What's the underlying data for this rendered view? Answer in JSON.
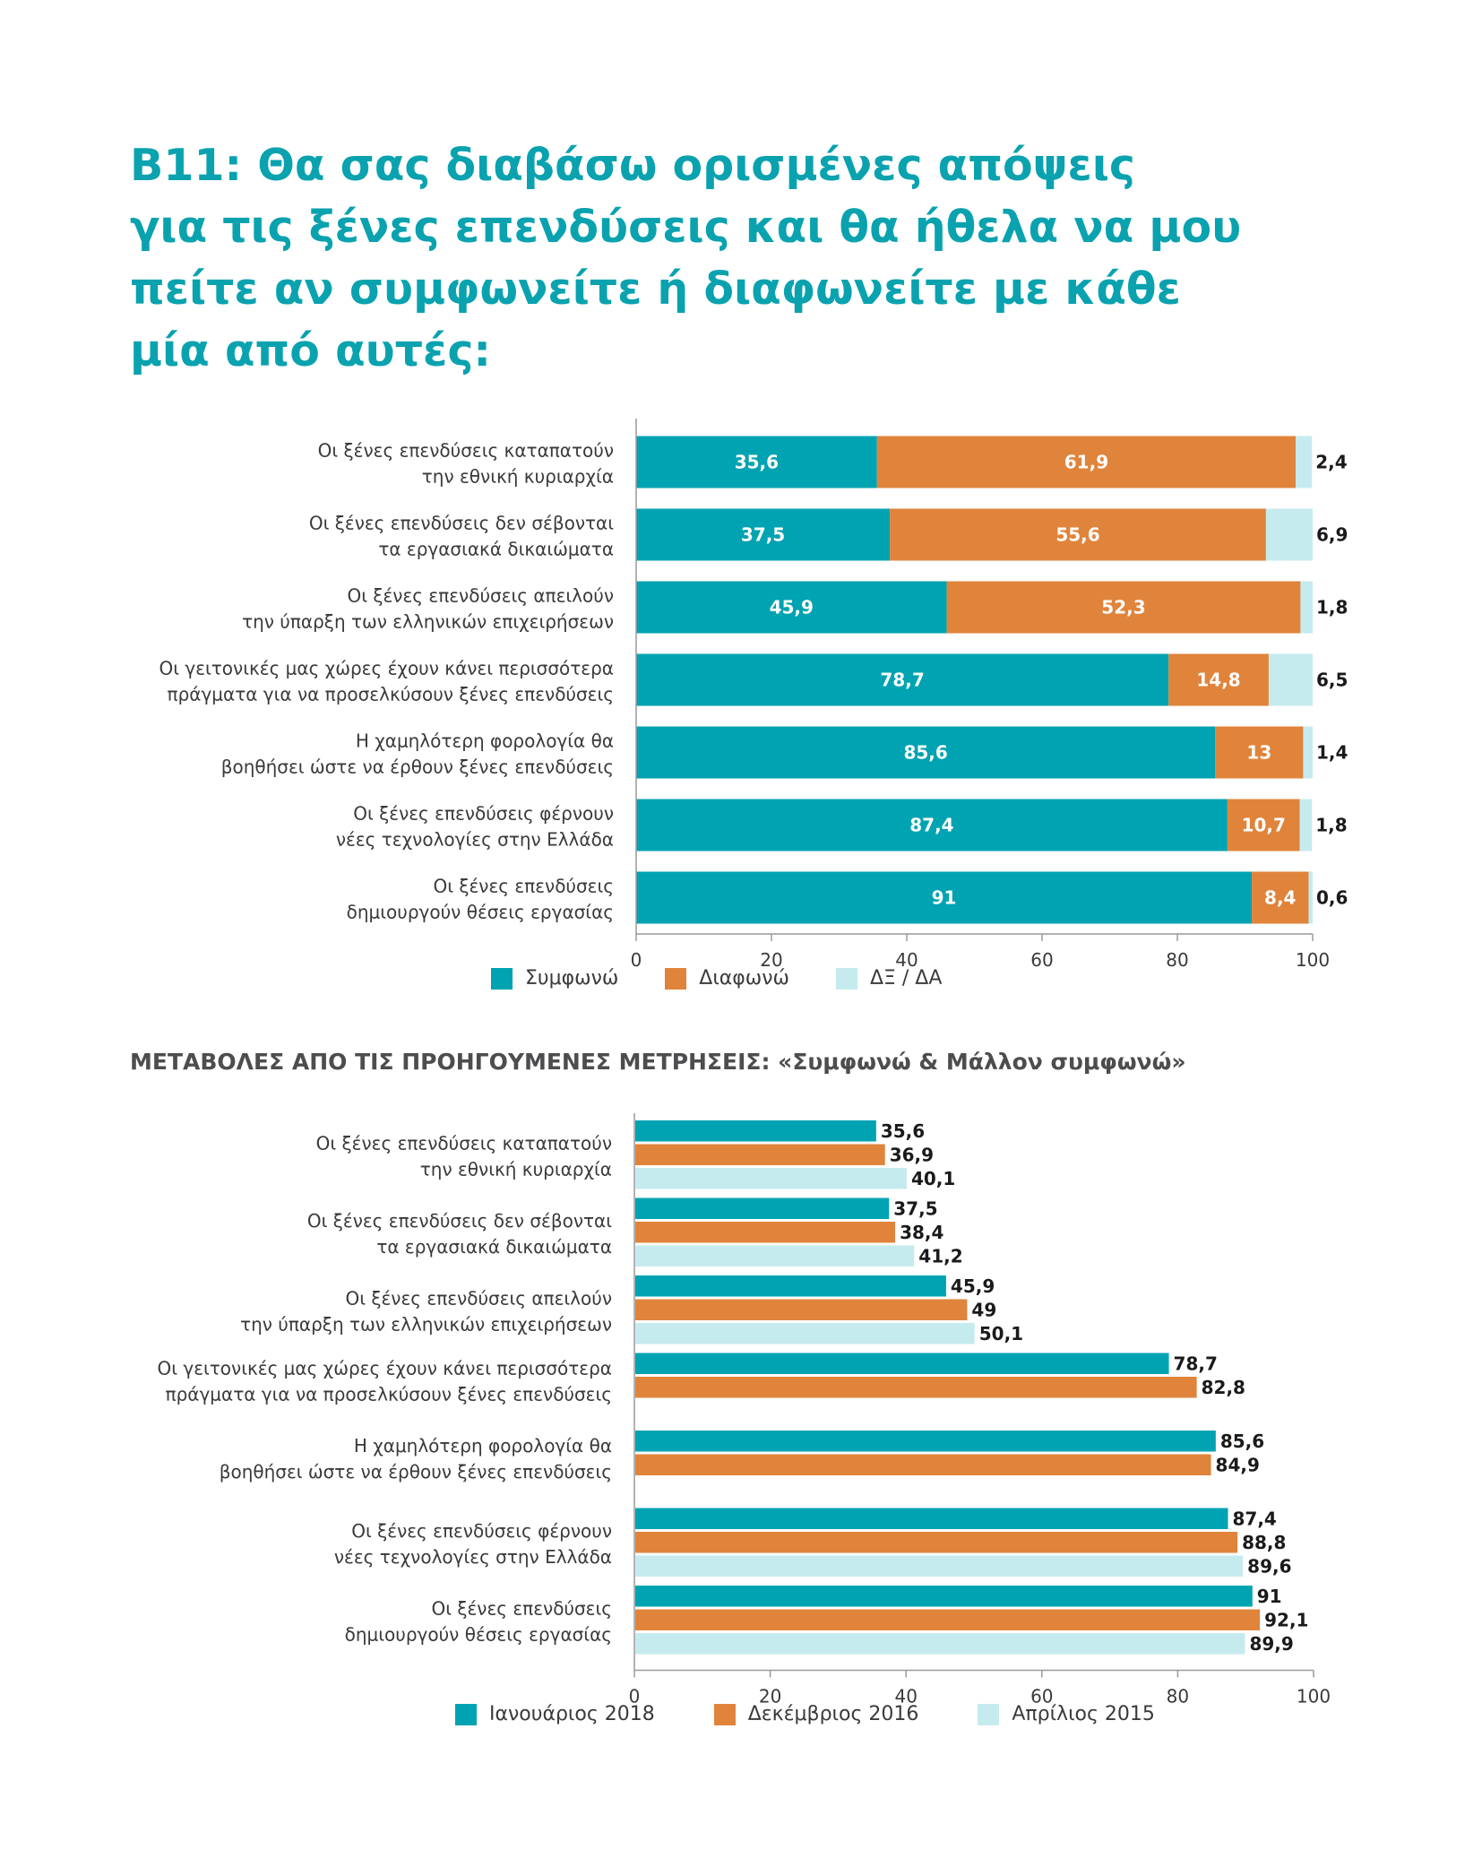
{
  "title_lines": [
    "B11: Θα σας διαβάσω ορισμένες απόψεις",
    "για τις ξένες επενδύσεις και θα ήθελα να μου",
    "πείτε αν συμφωνείτε ή διαφωνείτε με κάθε",
    "μία από αυτές:"
  ],
  "subtitle": "ΜΕΤΑΒΟΛΕΣ ΑΠΟ ΤΙΣ ΠΡΟΗΓΟΥΜΕΝΕΣ ΜΕΤΡΗΣΕΙΣ: «Συμφωνώ & Μάλλον συμφωνώ»",
  "colors": {
    "teal": "#00a3b2",
    "orange": "#e0843b",
    "light": "#c6ebee",
    "axis": "#9a9a9a"
  },
  "chart_data": [
    {
      "type": "bar",
      "orientation": "horizontal",
      "stacked": true,
      "categories": [
        [
          "Οι ξένες επενδύσεις καταπατούν",
          "την εθνική κυριαρχία"
        ],
        [
          "Οι ξένες επενδύσεις δεν σέβονται",
          "τα εργασιακά δικαιώματα"
        ],
        [
          "Οι ξένες επενδύσεις απειλούν",
          "την ύπαρξη των ελληνικών επιχειρήσεων"
        ],
        [
          "Οι γειτονικές μας χώρες έχουν κάνει περισσότερα",
          "πράγματα για να προσελκύσουν ξένες επενδύσεις"
        ],
        [
          "Η χαμηλότερη φορολογία θα",
          "βοηθήσει ώστε να έρθουν ξένες επενδύσεις"
        ],
        [
          "Οι ξένες επενδύσεις φέρνουν",
          "νέες τεχνολογίες στην Ελλάδα"
        ],
        [
          "Οι ξένες επενδύσεις",
          "δημιουργούν θέσεις εργασίας"
        ]
      ],
      "series": [
        {
          "name": "Συμφωνώ",
          "color": "#00a3b2",
          "values": [
            35.6,
            37.5,
            45.9,
            78.7,
            85.6,
            87.4,
            91
          ]
        },
        {
          "name": "Διαφωνώ",
          "color": "#e0843b",
          "values": [
            61.9,
            55.6,
            52.3,
            14.8,
            13,
            10.7,
            8.4
          ]
        },
        {
          "name": "ΔΞ / ΔΑ",
          "color": "#c6ebee",
          "values": [
            2.4,
            6.9,
            1.8,
            6.5,
            1.4,
            1.8,
            0.6
          ]
        }
      ],
      "value_labels": [
        [
          "35,6",
          "37,5",
          "45,9",
          "78,7",
          "85,6",
          "87,4",
          "91"
        ],
        [
          "61,9",
          "55,6",
          "52,3",
          "14,8",
          "13",
          "10,7",
          "8,4"
        ],
        [
          "2,4",
          "6,9",
          "1,8",
          "6,5",
          "1,4",
          "1,8",
          "0,6"
        ]
      ],
      "xlim": [
        0,
        100
      ],
      "xticks": [
        0,
        20,
        40,
        60,
        80,
        100
      ],
      "legend": "bottom"
    },
    {
      "type": "bar",
      "orientation": "horizontal",
      "stacked": false,
      "categories": [
        [
          "Οι ξένες επενδύσεις καταπατούν",
          "την εθνική κυριαρχία"
        ],
        [
          "Οι ξένες επενδύσεις δεν σέβονται",
          "τα εργασιακά δικαιώματα"
        ],
        [
          "Οι ξένες επενδύσεις απειλούν",
          "την ύπαρξη των ελληνικών επιχειρήσεων"
        ],
        [
          "Οι γειτονικές μας χώρες έχουν κάνει περισσότερα",
          "πράγματα για να προσελκύσουν ξένες επενδύσεις"
        ],
        [
          "Η χαμηλότερη φορολογία θα",
          "βοηθήσει ώστε να έρθουν ξένες επενδύσεις"
        ],
        [
          "Οι ξένες επενδύσεις φέρνουν",
          "νέες τεχνολογίες στην Ελλάδα"
        ],
        [
          "Οι ξένες επενδύσεις",
          "δημιουργούν θέσεις εργασίας"
        ]
      ],
      "series": [
        {
          "name": "Ιανουάριος 2018",
          "color": "#00a3b2",
          "values": [
            35.6,
            37.5,
            45.9,
            78.7,
            85.6,
            87.4,
            91
          ]
        },
        {
          "name": "Δεκέμβριος 2016",
          "color": "#e0843b",
          "values": [
            36.9,
            38.4,
            49,
            82.8,
            84.9,
            88.8,
            92.1
          ]
        },
        {
          "name": "Απρίλιος 2015",
          "color": "#c6ebee",
          "values": [
            40.1,
            41.2,
            50.1,
            null,
            null,
            89.6,
            89.9
          ]
        }
      ],
      "value_labels": [
        [
          "35,6",
          "37,5",
          "45,9",
          "78,7",
          "85,6",
          "87,4",
          "91"
        ],
        [
          "36,9",
          "38,4",
          "49",
          "82,8",
          "84,9",
          "88,8",
          "92,1"
        ],
        [
          "40,1",
          "41,2",
          "50,1",
          null,
          null,
          "89,6",
          "89,9"
        ]
      ],
      "xlim": [
        0,
        100
      ],
      "xticks": [
        0,
        20,
        40,
        60,
        80,
        100
      ],
      "legend": "bottom"
    }
  ]
}
